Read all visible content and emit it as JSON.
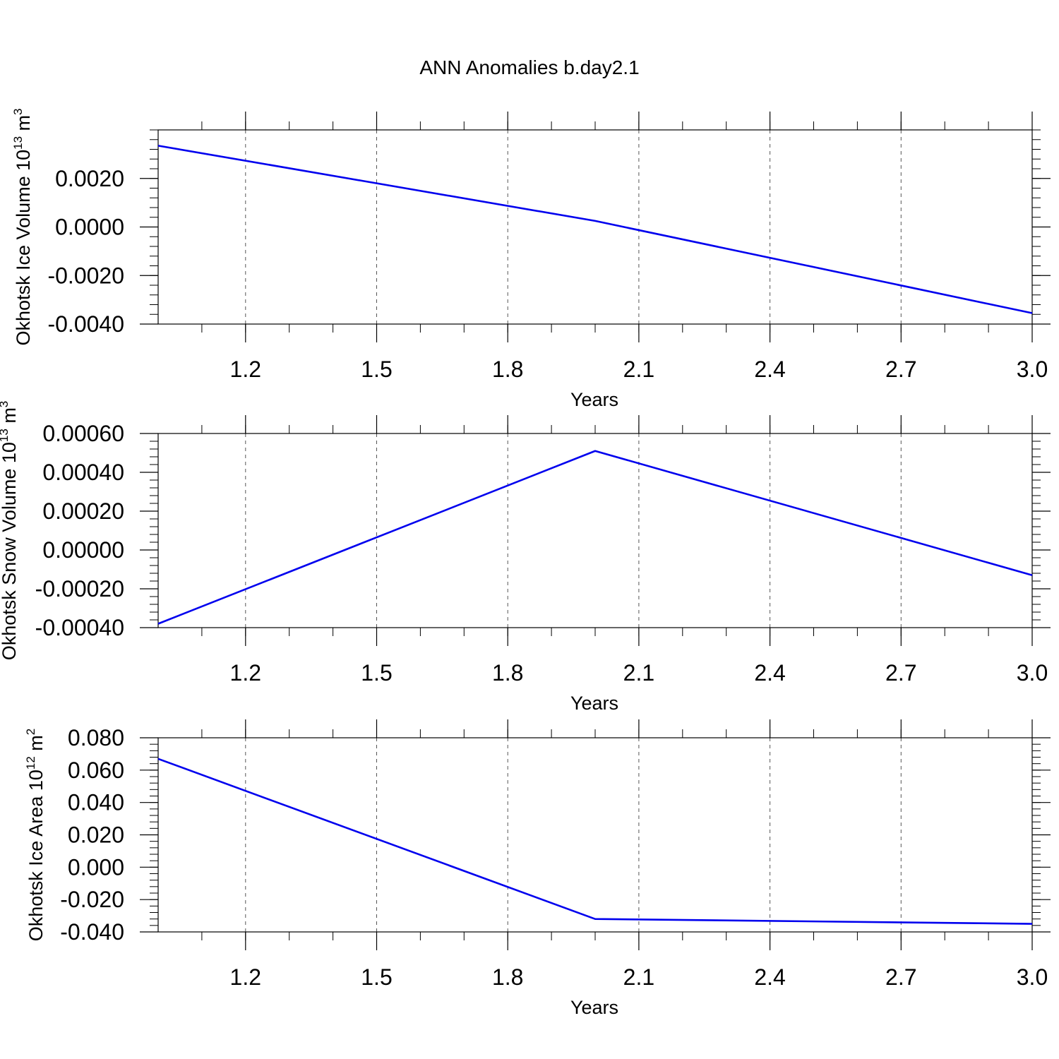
{
  "title": "ANN Anomalies b.day2.1",
  "colors": {
    "line": "#0000ee",
    "axis": "#000000",
    "grid": "#555555"
  },
  "chart_data": [
    {
      "type": "line",
      "title": "",
      "xlabel": "Years",
      "ylabel_parts": [
        "Okhotsk Ice Volume 10",
        "13",
        " m",
        "3"
      ],
      "xlim": [
        1.0,
        3.0
      ],
      "ylim": [
        -0.004,
        0.004
      ],
      "x_ticks": [
        "1.2",
        "1.5",
        "1.8",
        "2.1",
        "2.4",
        "2.7",
        "3.0"
      ],
      "y_ticks": [
        "0.0020",
        "0.0000",
        "-0.0020",
        "-0.0040"
      ],
      "y_tick_values": [
        0.002,
        0.0,
        -0.002,
        -0.004
      ],
      "grid": "vertical dashed",
      "series": [
        {
          "x": [
            1,
            2,
            3
          ],
          "y": [
            0.00335,
            0.00025,
            -0.00355
          ]
        }
      ]
    },
    {
      "type": "line",
      "title": "",
      "xlabel": "Years",
      "ylabel_parts": [
        "Okhotsk Snow Volume 10",
        "13",
        " m",
        "3"
      ],
      "xlim": [
        1.0,
        3.0
      ],
      "ylim": [
        -0.0004,
        0.0006
      ],
      "x_ticks": [
        "1.2",
        "1.5",
        "1.8",
        "2.1",
        "2.4",
        "2.7",
        "3.0"
      ],
      "y_ticks": [
        "0.00060",
        "0.00040",
        "0.00020",
        "0.00000",
        "-0.00020",
        "-0.00040"
      ],
      "y_tick_values": [
        0.0006,
        0.0004,
        0.0002,
        0.0,
        -0.0002,
        -0.0004
      ],
      "grid": "vertical dashed",
      "series": [
        {
          "x": [
            1,
            2,
            3
          ],
          "y": [
            -0.00038,
            0.00051,
            -0.00013
          ]
        }
      ]
    },
    {
      "type": "line",
      "title": "",
      "xlabel": "Years",
      "ylabel_parts": [
        "Okhotsk Ice Area 10",
        "12",
        " m",
        "2"
      ],
      "xlim": [
        1.0,
        3.0
      ],
      "ylim": [
        -0.04,
        0.08
      ],
      "x_ticks": [
        "1.2",
        "1.5",
        "1.8",
        "2.1",
        "2.4",
        "2.7",
        "3.0"
      ],
      "y_ticks": [
        "0.080",
        "0.060",
        "0.040",
        "0.020",
        "0.000",
        "-0.020",
        "-0.040"
      ],
      "y_tick_values": [
        0.08,
        0.06,
        0.04,
        0.02,
        0.0,
        -0.02,
        -0.04
      ],
      "grid": "vertical dashed",
      "series": [
        {
          "x": [
            1,
            2,
            3
          ],
          "y": [
            0.067,
            -0.032,
            -0.035
          ]
        }
      ]
    }
  ]
}
